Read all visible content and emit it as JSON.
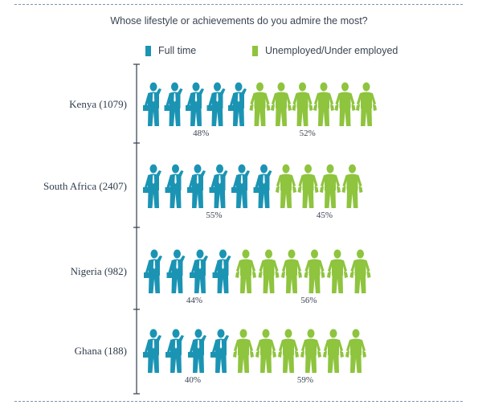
{
  "chart_data": {
    "type": "bar",
    "title": "Whose lifestyle or achievements do you admire the most?",
    "categories": [
      "Kenya (1079)",
      "South Africa (2407)",
      "Nigeria (982)",
      "Ghana (188)"
    ],
    "series": [
      {
        "name": "Full time",
        "values": [
          48,
          55,
          44,
          40
        ],
        "labels": [
          "48%",
          "55%",
          "44%",
          "40%"
        ],
        "color": "#1b94b4"
      },
      {
        "name": "Unemployed/Under employed",
        "values": [
          52,
          45,
          56,
          59
        ],
        "labels": [
          "52%",
          "45%",
          "56%",
          "59%"
        ],
        "color": "#8ec43e"
      }
    ],
    "unit": "%",
    "legend_position": "top",
    "grid": false,
    "icon_names": [
      "businessman-icon",
      "empty-pockets-man-icon"
    ]
  }
}
